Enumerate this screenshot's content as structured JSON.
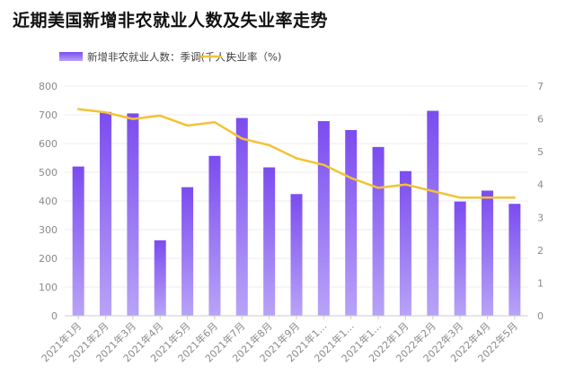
{
  "title": "近期美国新增非农就业人数及失业率走势",
  "colors": {
    "bar_top": "#7b4cf0",
    "bar_bottom": "#b8a3f7",
    "line": "#f2c335",
    "grid": "#ececec",
    "axis_text": "#8a8a8a"
  },
  "chart_data": {
    "type": "bar",
    "categories": [
      "2021年1月",
      "2021年2月",
      "2021年3月",
      "2021年4月",
      "2021年5月",
      "2021年6月",
      "2021年7月",
      "2021年8月",
      "2021年9月",
      "2021年1…",
      "2021年1…",
      "2021年1…",
      "2022年1月",
      "2022年2月",
      "2022年3月",
      "2022年4月",
      "2022年5月"
    ],
    "series": [
      {
        "name": "新增非农就业人数：季调(千人)",
        "type": "bar",
        "axis": "left",
        "values": [
          520,
          710,
          705,
          263,
          448,
          557,
          689,
          517,
          424,
          678,
          647,
          588,
          504,
          714,
          398,
          436,
          390
        ]
      },
      {
        "name": "失业率（%)",
        "type": "line",
        "axis": "right",
        "values": [
          6.3,
          6.2,
          6.0,
          6.1,
          5.8,
          5.9,
          5.4,
          5.2,
          4.8,
          4.6,
          4.2,
          3.9,
          4.0,
          3.8,
          3.6,
          3.6,
          3.6
        ]
      }
    ],
    "y_left": {
      "min": 0,
      "max": 800,
      "ticks": [
        0,
        100,
        200,
        300,
        400,
        500,
        600,
        700,
        800
      ]
    },
    "y_right": {
      "min": 0,
      "max": 7,
      "ticks": [
        0,
        1,
        2,
        3,
        4,
        5,
        6,
        7
      ]
    },
    "grid": true,
    "legend_position": "top-left"
  }
}
